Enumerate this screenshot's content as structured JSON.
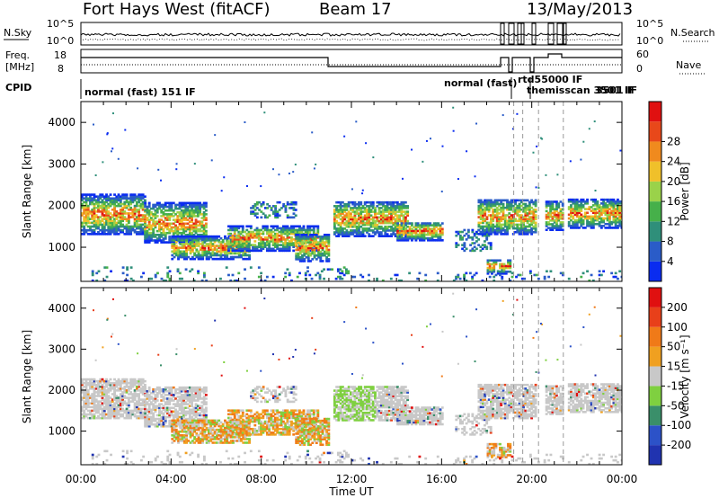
{
  "header": {
    "station": "Fort Hays West (fitACF)",
    "beam": "Beam 17",
    "date": "13/May/2013"
  },
  "summary": {
    "nsky_label": "N.Sky",
    "nsearch_label": "N.Search",
    "nsky_ticks": [
      "10^5",
      "10^0"
    ],
    "nsearch_ticks": [
      "10^5",
      "10^0"
    ],
    "freq_label_1": "Freq.",
    "freq_label_2": "[MHz]",
    "freq_ticks": [
      "18",
      "8"
    ],
    "nave_label": "Nave",
    "nave_ticks": [
      "60",
      "0"
    ],
    "cpid_label": "CPID",
    "cpid_text_1": "normal (fast) 151 IF",
    "cpid_text_2": "normal (fast)",
    "cpid_text_3": "rtd55000 IF",
    "cpid_text_4": "themisscan 3501 IF",
    "cpid_text_5": "3501 IF"
  },
  "chart_data": [
    {
      "type": "heatmap",
      "name": "power",
      "ylabel": "Slant Range [km]",
      "yticks": [
        1000,
        2000,
        3000,
        4000
      ],
      "ylim": [
        180,
        4500
      ],
      "xlim": [
        0,
        24
      ],
      "colorbar": {
        "label": "Power [dB]",
        "ticks": [
          "4",
          "8",
          "12",
          "16",
          "20",
          "24",
          "28"
        ],
        "colors": [
          "#0a2cf0",
          "#2a5cc8",
          "#2f8f7a",
          "#46b04a",
          "#9ad24a",
          "#f0c02a",
          "#f08a1e",
          "#e8481a",
          "#e01010"
        ]
      }
    },
    {
      "type": "heatmap",
      "name": "velocity",
      "ylabel": "Slant Range [km]",
      "xlabel": "Time UT",
      "yticks": [
        1000,
        2000,
        3000,
        4000
      ],
      "ylim": [
        180,
        4500
      ],
      "xlim": [
        0,
        24
      ],
      "xticks": [
        "00:00",
        "04:00",
        "08:00",
        "12:00",
        "16:00",
        "20:00",
        "00:00"
      ],
      "colorbar": {
        "label": "Velocity [m s⁻¹]",
        "ticks": [
          "200",
          "100",
          "50",
          "15",
          "-15",
          "-50",
          "-100",
          "-200"
        ],
        "colors": [
          "#2033b0",
          "#2c52c8",
          "#3a8f6a",
          "#7fd040",
          "#c8c8c8",
          "#f0a020",
          "#f07a18",
          "#e8401a",
          "#e01010"
        ]
      }
    }
  ],
  "colors": {
    "grey": "#c4c4bc",
    "blue": "#1f3fd0",
    "green": "#3fa050",
    "lightgreen": "#9ad24a",
    "orange": "#f0a020",
    "red": "#e8301a"
  }
}
